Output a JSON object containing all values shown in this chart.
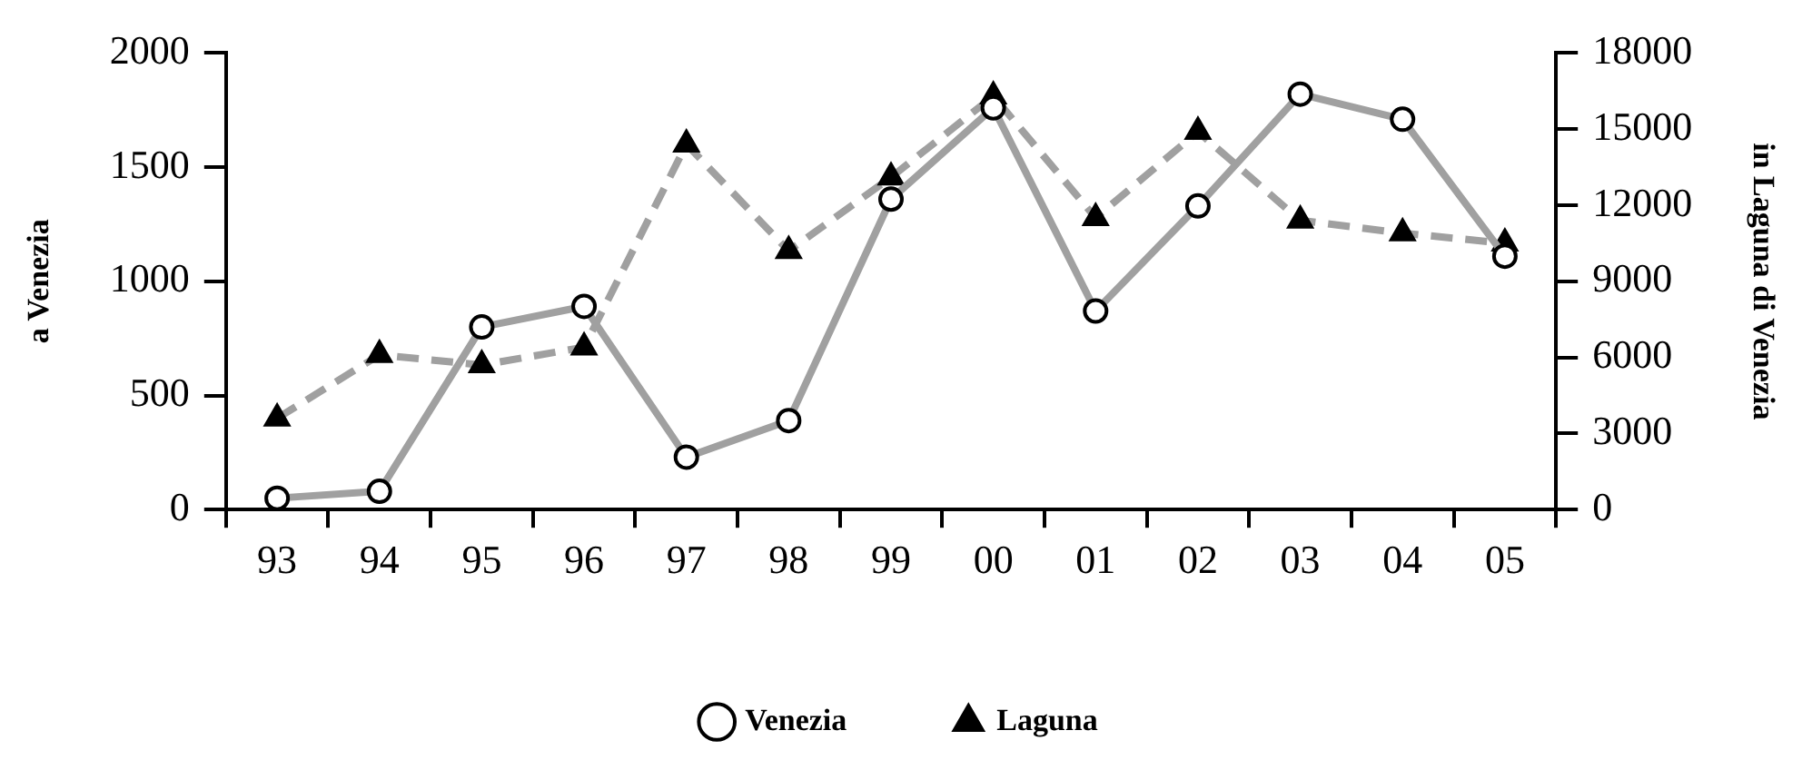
{
  "chart_data": {
    "type": "line",
    "ylabel": "a Venezia",
    "y2label": "in Laguna di Venezia",
    "categories": [
      "93",
      "94",
      "95",
      "96",
      "97",
      "98",
      "99",
      "00",
      "01",
      "02",
      "03",
      "04",
      "05"
    ],
    "series": [
      {
        "name": "Venezia",
        "color": "#a0a0a0",
        "marker": "circle",
        "line_style": "solid",
        "values": [
          50,
          80,
          800,
          890,
          230,
          390,
          1360,
          1760,
          870,
          1330,
          1820,
          1710,
          1110
        ]
      },
      {
        "name": "Laguna",
        "color": "#a0a0a0",
        "marker": "triangle",
        "line_style": "dashed",
        "axis": "y2",
        "values": [
          3600,
          6100,
          5700,
          6400,
          14400,
          10200,
          13100,
          16300,
          11500,
          14900,
          11400,
          10900,
          10500
        ]
      }
    ],
    "ylim": [
      0,
      2000
    ],
    "yticks": [
      0,
      500,
      1000,
      1500,
      2000
    ],
    "y2lim": [
      0,
      18000
    ],
    "y2ticks": [
      0,
      3000,
      6000,
      9000,
      12000,
      15000,
      18000
    ],
    "grid": false,
    "legend": "bottom"
  }
}
